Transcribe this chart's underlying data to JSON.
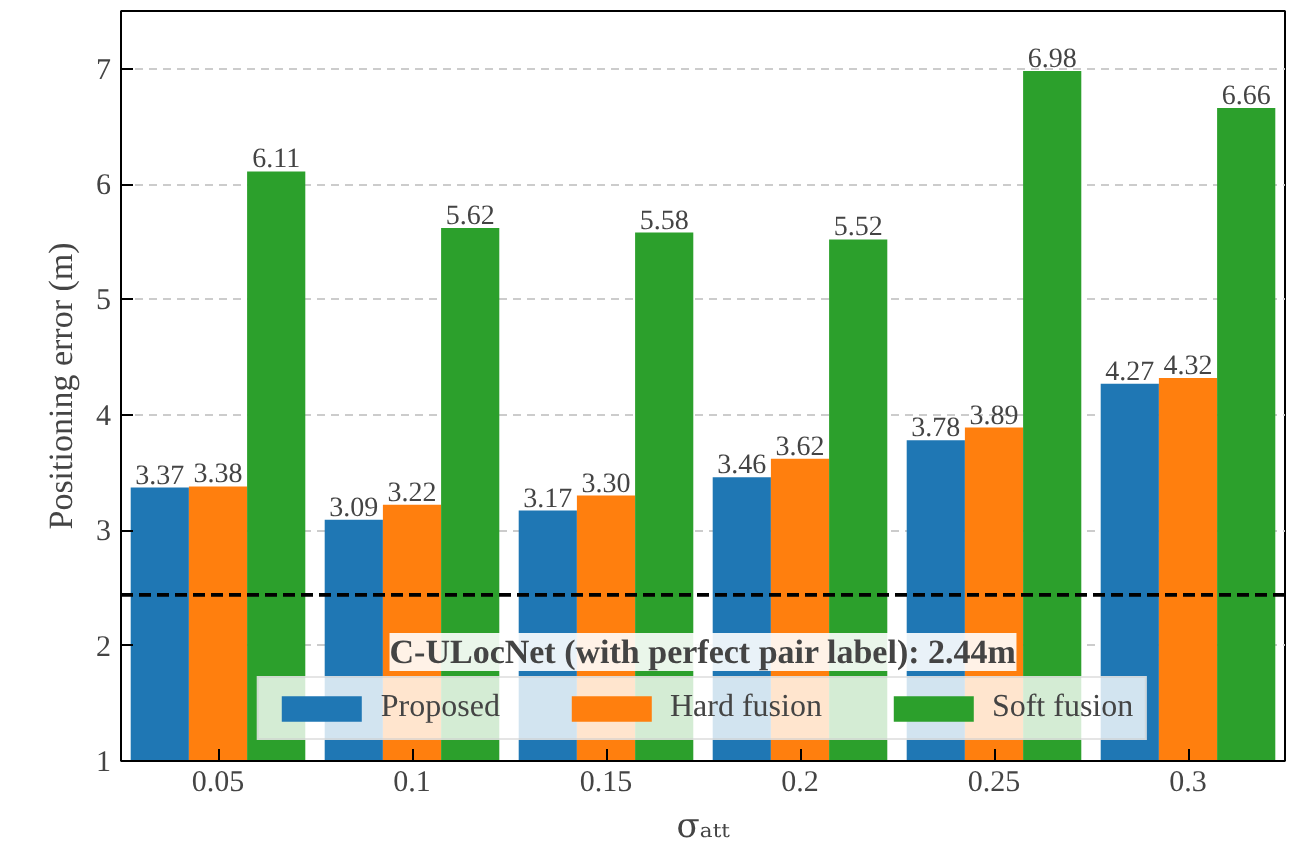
{
  "chart_data": {
    "type": "bar",
    "xlabel": "σₐₜₜ",
    "ylabel": "Positioning error (m)",
    "categories": [
      "0.05",
      "0.1",
      "0.15",
      "0.2",
      "0.25",
      "0.3"
    ],
    "series": [
      {
        "name": "Proposed",
        "color": "#1f77b4",
        "values": [
          3.37,
          3.09,
          3.17,
          3.46,
          3.78,
          4.27
        ],
        "value_labels": [
          "3.37",
          "3.09",
          "3.17",
          "3.46",
          "3.78",
          "4.27"
        ]
      },
      {
        "name": "Hard fusion",
        "color": "#ff7f0e",
        "values": [
          3.38,
          3.22,
          3.3,
          3.62,
          3.89,
          4.32
        ],
        "value_labels": [
          "3.38",
          "3.22",
          "3.30",
          "3.62",
          "3.89",
          "4.32"
        ]
      },
      {
        "name": "Soft fusion",
        "color": "#2ca02c",
        "values": [
          6.11,
          5.62,
          5.58,
          5.52,
          6.98,
          6.66
        ],
        "value_labels": [
          "6.11",
          "5.62",
          "5.58",
          "5.52",
          "6.98",
          "6.66"
        ]
      }
    ],
    "ylim": [
      1,
      7.5
    ],
    "yticks": [
      1,
      2,
      3,
      4,
      5,
      6,
      7
    ],
    "grid": "y",
    "legend": "bottom",
    "ref_lines": [
      {
        "axis": "y",
        "value": 2.44,
        "color": "#000000",
        "line_style": "dashed"
      }
    ],
    "annotations": [
      "C-ULocNet (with perfect pair label): 2.44m"
    ]
  }
}
